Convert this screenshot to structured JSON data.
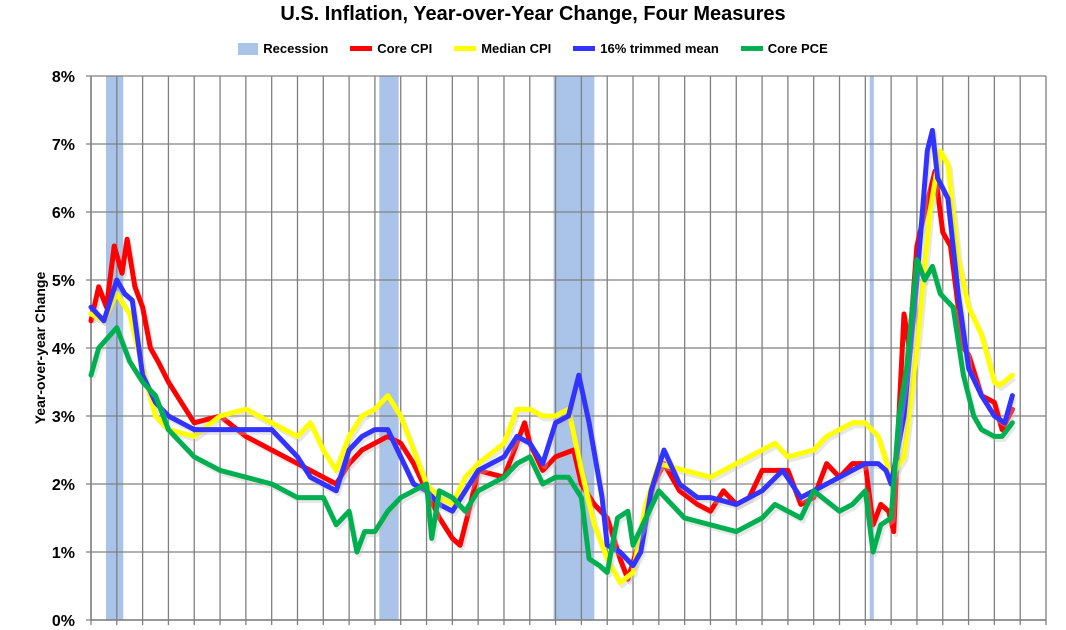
{
  "chart_data": {
    "type": "line",
    "title": "U.S. Inflation, Year-over-Year Change, Four Measures",
    "ylabel": "Year-over-year Change",
    "xlabel": "",
    "xlim": [
      1990,
      2027
    ],
    "ylim": [
      0,
      8
    ],
    "yticks": [
      "0%",
      "1%",
      "2%",
      "3%",
      "4%",
      "5%",
      "6%",
      "7%",
      "8%"
    ],
    "grid": true,
    "legend_position": "top",
    "recession": {
      "name": "Recession",
      "color": "#a9c4e8",
      "periods": [
        [
          1990.58,
          1991.25
        ],
        [
          2001.17,
          2001.92
        ],
        [
          2007.92,
          2009.5
        ],
        [
          2020.17,
          2020.33
        ]
      ]
    },
    "series": [
      {
        "name": "Core CPI",
        "color": "#ff0000",
        "points": [
          [
            1990,
            4.4
          ],
          [
            1990.3,
            4.9
          ],
          [
            1990.6,
            4.6
          ],
          [
            1990.9,
            5.5
          ],
          [
            1991.2,
            5.1
          ],
          [
            1991.4,
            5.6
          ],
          [
            1991.7,
            4.9
          ],
          [
            1992,
            4.6
          ],
          [
            1992.3,
            4.0
          ],
          [
            1992.6,
            3.8
          ],
          [
            1993,
            3.5
          ],
          [
            1993.5,
            3.2
          ],
          [
            1994,
            2.9
          ],
          [
            1995,
            3.0
          ],
          [
            1996,
            2.7
          ],
          [
            1997,
            2.5
          ],
          [
            1998,
            2.3
          ],
          [
            1999,
            2.1
          ],
          [
            1999.5,
            2.0
          ],
          [
            2000,
            2.3
          ],
          [
            2000.5,
            2.5
          ],
          [
            2001,
            2.6
          ],
          [
            2001.5,
            2.7
          ],
          [
            2002,
            2.6
          ],
          [
            2002.5,
            2.3
          ],
          [
            2003,
            1.9
          ],
          [
            2003.5,
            1.5
          ],
          [
            2004,
            1.2
          ],
          [
            2004.3,
            1.1
          ],
          [
            2004.7,
            1.7
          ],
          [
            2005,
            2.2
          ],
          [
            2006,
            2.1
          ],
          [
            2006.8,
            2.9
          ],
          [
            2007,
            2.6
          ],
          [
            2007.5,
            2.2
          ],
          [
            2008,
            2.4
          ],
          [
            2008.7,
            2.5
          ],
          [
            2009,
            2.0
          ],
          [
            2009.5,
            1.7
          ],
          [
            2010,
            1.5
          ],
          [
            2010.5,
            0.9
          ],
          [
            2010.8,
            0.6
          ],
          [
            2011.2,
            1.1
          ],
          [
            2011.8,
            2.0
          ],
          [
            2012.2,
            2.3
          ],
          [
            2012.8,
            1.9
          ],
          [
            2013.5,
            1.7
          ],
          [
            2014,
            1.6
          ],
          [
            2014.5,
            1.9
          ],
          [
            2015,
            1.7
          ],
          [
            2015.5,
            1.8
          ],
          [
            2016,
            2.2
          ],
          [
            2016.5,
            2.2
          ],
          [
            2017,
            2.2
          ],
          [
            2017.5,
            1.7
          ],
          [
            2018,
            1.8
          ],
          [
            2018.5,
            2.3
          ],
          [
            2019,
            2.1
          ],
          [
            2019.5,
            2.3
          ],
          [
            2020,
            2.3
          ],
          [
            2020.3,
            1.4
          ],
          [
            2020.6,
            1.7
          ],
          [
            2020.9,
            1.6
          ],
          [
            2021.1,
            1.3
          ],
          [
            2021.3,
            3.0
          ],
          [
            2021.5,
            4.5
          ],
          [
            2021.7,
            4.0
          ],
          [
            2022,
            5.5
          ],
          [
            2022.3,
            6.0
          ],
          [
            2022.7,
            6.6
          ],
          [
            2023,
            5.7
          ],
          [
            2023.3,
            5.5
          ],
          [
            2023.8,
            4.0
          ],
          [
            2024,
            3.9
          ],
          [
            2024.5,
            3.3
          ],
          [
            2025,
            3.2
          ],
          [
            2025.3,
            2.8
          ],
          [
            2025.7,
            3.1
          ]
        ]
      },
      {
        "name": "Median CPI",
        "color": "#ffff00",
        "points": [
          [
            1990,
            4.5
          ],
          [
            1990.5,
            4.4
          ],
          [
            1991,
            4.8
          ],
          [
            1991.5,
            4.5
          ],
          [
            1992,
            3.7
          ],
          [
            1992.5,
            3.0
          ],
          [
            1993,
            2.8
          ],
          [
            1994,
            2.7
          ],
          [
            1995,
            3.0
          ],
          [
            1996,
            3.1
          ],
          [
            1997,
            2.9
          ],
          [
            1998,
            2.7
          ],
          [
            1998.5,
            2.9
          ],
          [
            1999,
            2.5
          ],
          [
            1999.5,
            2.2
          ],
          [
            2000,
            2.7
          ],
          [
            2000.5,
            3.0
          ],
          [
            2001,
            3.1
          ],
          [
            2001.5,
            3.3
          ],
          [
            2002,
            3.0
          ],
          [
            2002.5,
            2.5
          ],
          [
            2003,
            2.0
          ],
          [
            2003.5,
            1.8
          ],
          [
            2004,
            1.7
          ],
          [
            2004.5,
            2.1
          ],
          [
            2005,
            2.3
          ],
          [
            2006,
            2.6
          ],
          [
            2006.5,
            3.1
          ],
          [
            2007,
            3.1
          ],
          [
            2007.5,
            3.0
          ],
          [
            2008,
            3.0
          ],
          [
            2008.5,
            3.1
          ],
          [
            2009,
            2.2
          ],
          [
            2009.5,
            1.4
          ],
          [
            2010,
            0.9
          ],
          [
            2010.5,
            0.55
          ],
          [
            2011,
            0.7
          ],
          [
            2011.5,
            1.7
          ],
          [
            2012,
            2.3
          ],
          [
            2013,
            2.2
          ],
          [
            2014,
            2.1
          ],
          [
            2015,
            2.3
          ],
          [
            2016,
            2.5
          ],
          [
            2016.5,
            2.6
          ],
          [
            2017,
            2.4
          ],
          [
            2018,
            2.5
          ],
          [
            2018.5,
            2.7
          ],
          [
            2019,
            2.8
          ],
          [
            2019.5,
            2.9
          ],
          [
            2020,
            2.9
          ],
          [
            2020.5,
            2.7
          ],
          [
            2021,
            2.1
          ],
          [
            2021.5,
            2.4
          ],
          [
            2022,
            4.0
          ],
          [
            2022.5,
            6.0
          ],
          [
            2022.9,
            6.9
          ],
          [
            2023.2,
            6.7
          ],
          [
            2023.6,
            5.3
          ],
          [
            2024,
            4.6
          ],
          [
            2024.5,
            4.2
          ],
          [
            2025,
            3.5
          ],
          [
            2025.2,
            3.45
          ],
          [
            2025.7,
            3.6
          ]
        ]
      },
      {
        "name": "16% trimmed mean",
        "color": "#3333ff",
        "points": [
          [
            1990,
            4.6
          ],
          [
            1990.5,
            4.4
          ],
          [
            1991,
            5.0
          ],
          [
            1991.3,
            4.8
          ],
          [
            1991.6,
            4.7
          ],
          [
            1992,
            3.6
          ],
          [
            1992.5,
            3.2
          ],
          [
            1993,
            3.0
          ],
          [
            1994,
            2.8
          ],
          [
            1995,
            2.8
          ],
          [
            1996,
            2.8
          ],
          [
            1997,
            2.8
          ],
          [
            1998,
            2.4
          ],
          [
            1998.5,
            2.1
          ],
          [
            1999,
            2.0
          ],
          [
            1999.5,
            1.9
          ],
          [
            2000,
            2.5
          ],
          [
            2000.5,
            2.7
          ],
          [
            2001,
            2.8
          ],
          [
            2001.5,
            2.8
          ],
          [
            2002,
            2.4
          ],
          [
            2002.5,
            2.0
          ],
          [
            2003,
            1.9
          ],
          [
            2003.5,
            1.7
          ],
          [
            2004,
            1.6
          ],
          [
            2004.5,
            1.9
          ],
          [
            2005,
            2.2
          ],
          [
            2006,
            2.4
          ],
          [
            2006.5,
            2.7
          ],
          [
            2007,
            2.6
          ],
          [
            2007.5,
            2.3
          ],
          [
            2008,
            2.9
          ],
          [
            2008.5,
            3.0
          ],
          [
            2008.9,
            3.6
          ],
          [
            2009.3,
            2.9
          ],
          [
            2009.8,
            1.8
          ],
          [
            2010,
            1.1
          ],
          [
            2010.5,
            1.0
          ],
          [
            2011,
            0.8
          ],
          [
            2011.3,
            1.0
          ],
          [
            2011.7,
            1.9
          ],
          [
            2012.2,
            2.5
          ],
          [
            2012.8,
            2.0
          ],
          [
            2013.5,
            1.8
          ],
          [
            2014,
            1.8
          ],
          [
            2015,
            1.7
          ],
          [
            2016,
            1.9
          ],
          [
            2016.8,
            2.2
          ],
          [
            2017.5,
            1.8
          ],
          [
            2018,
            1.9
          ],
          [
            2019,
            2.1
          ],
          [
            2020,
            2.3
          ],
          [
            2020.5,
            2.3
          ],
          [
            2020.8,
            2.2
          ],
          [
            2021,
            2.0
          ],
          [
            2021.5,
            3.0
          ],
          [
            2022,
            5.0
          ],
          [
            2022.4,
            6.9
          ],
          [
            2022.6,
            7.2
          ],
          [
            2022.8,
            6.5
          ],
          [
            2023.2,
            6.2
          ],
          [
            2023.6,
            4.8
          ],
          [
            2024,
            3.7
          ],
          [
            2024.5,
            3.3
          ],
          [
            2025,
            3.0
          ],
          [
            2025.4,
            2.9
          ],
          [
            2025.7,
            3.3
          ]
        ]
      },
      {
        "name": "Core PCE",
        "color": "#00b050",
        "points": [
          [
            1990,
            3.6
          ],
          [
            1990.3,
            4.0
          ],
          [
            1991,
            4.3
          ],
          [
            1991.5,
            3.8
          ],
          [
            1992,
            3.5
          ],
          [
            1992.5,
            3.3
          ],
          [
            1993,
            2.8
          ],
          [
            1994,
            2.4
          ],
          [
            1995,
            2.2
          ],
          [
            1996,
            2.1
          ],
          [
            1997,
            2.0
          ],
          [
            1998,
            1.8
          ],
          [
            1999,
            1.8
          ],
          [
            1999.5,
            1.4
          ],
          [
            2000,
            1.6
          ],
          [
            2000.3,
            1.0
          ],
          [
            2000.6,
            1.3
          ],
          [
            2001,
            1.3
          ],
          [
            2001.5,
            1.6
          ],
          [
            2002,
            1.8
          ],
          [
            2002.5,
            1.9
          ],
          [
            2003,
            2.0
          ],
          [
            2003.2,
            1.2
          ],
          [
            2003.5,
            1.9
          ],
          [
            2004,
            1.8
          ],
          [
            2004.5,
            1.6
          ],
          [
            2005,
            1.9
          ],
          [
            2006,
            2.1
          ],
          [
            2006.5,
            2.3
          ],
          [
            2007,
            2.4
          ],
          [
            2007.5,
            2.0
          ],
          [
            2008,
            2.1
          ],
          [
            2008.5,
            2.1
          ],
          [
            2009,
            1.8
          ],
          [
            2009.3,
            0.9
          ],
          [
            2009.7,
            0.8
          ],
          [
            2010,
            0.7
          ],
          [
            2010.4,
            1.5
          ],
          [
            2010.8,
            1.6
          ],
          [
            2011,
            1.1
          ],
          [
            2011.5,
            1.5
          ],
          [
            2012,
            1.9
          ],
          [
            2013,
            1.5
          ],
          [
            2014,
            1.4
          ],
          [
            2015,
            1.3
          ],
          [
            2016,
            1.5
          ],
          [
            2016.5,
            1.7
          ],
          [
            2017.5,
            1.5
          ],
          [
            2018,
            1.9
          ],
          [
            2019,
            1.6
          ],
          [
            2019.5,
            1.7
          ],
          [
            2020,
            1.9
          ],
          [
            2020.3,
            1.0
          ],
          [
            2020.6,
            1.4
          ],
          [
            2021,
            1.5
          ],
          [
            2021.3,
            3.0
          ],
          [
            2021.6,
            3.7
          ],
          [
            2022,
            5.3
          ],
          [
            2022.3,
            5.0
          ],
          [
            2022.6,
            5.2
          ],
          [
            2022.9,
            4.8
          ],
          [
            2023.4,
            4.6
          ],
          [
            2023.8,
            3.6
          ],
          [
            2024.2,
            3.0
          ],
          [
            2024.5,
            2.8
          ],
          [
            2025,
            2.7
          ],
          [
            2025.3,
            2.7
          ],
          [
            2025.7,
            2.9
          ]
        ]
      }
    ]
  }
}
